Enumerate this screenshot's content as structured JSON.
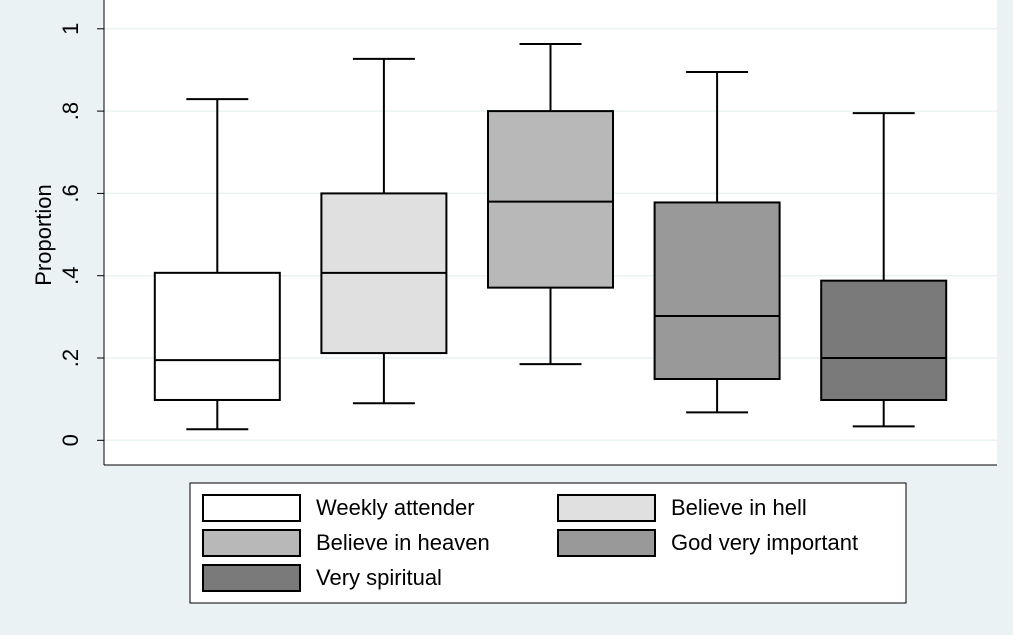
{
  "chart_data": {
    "type": "box",
    "y_label": "Proportion",
    "ylim": [
      -0.06,
      1.07
    ],
    "yticks": [
      0,
      {
        "value": 0.2,
        "label": ".2"
      },
      {
        "value": 0.4,
        "label": ".4"
      },
      {
        "value": 0.6,
        "label": ".6"
      },
      {
        "value": 0.8,
        "label": ".8"
      },
      1
    ],
    "grid": true,
    "series": [
      {
        "name": "Weekly attender",
        "color": "#ffffff",
        "min": 0.027,
        "q1": 0.098,
        "median": 0.195,
        "q3": 0.407,
        "max": 0.829
      },
      {
        "name": "Believe in hell",
        "color": "#e0e0e0",
        "min": 0.09,
        "q1": 0.212,
        "median": 0.407,
        "q3": 0.6,
        "max": 0.927
      },
      {
        "name": "Believe in heaven",
        "color": "#b8b8b8",
        "min": 0.185,
        "q1": 0.371,
        "median": 0.58,
        "q3": 0.8,
        "max": 0.963
      },
      {
        "name": "God very important",
        "color": "#999999",
        "min": 0.068,
        "q1": 0.149,
        "median": 0.302,
        "q3": 0.578,
        "max": 0.895
      },
      {
        "name": "Very spiritual",
        "color": "#7a7a7a",
        "min": 0.034,
        "q1": 0.098,
        "median": 0.2,
        "q3": 0.388,
        "max": 0.795
      }
    ]
  }
}
